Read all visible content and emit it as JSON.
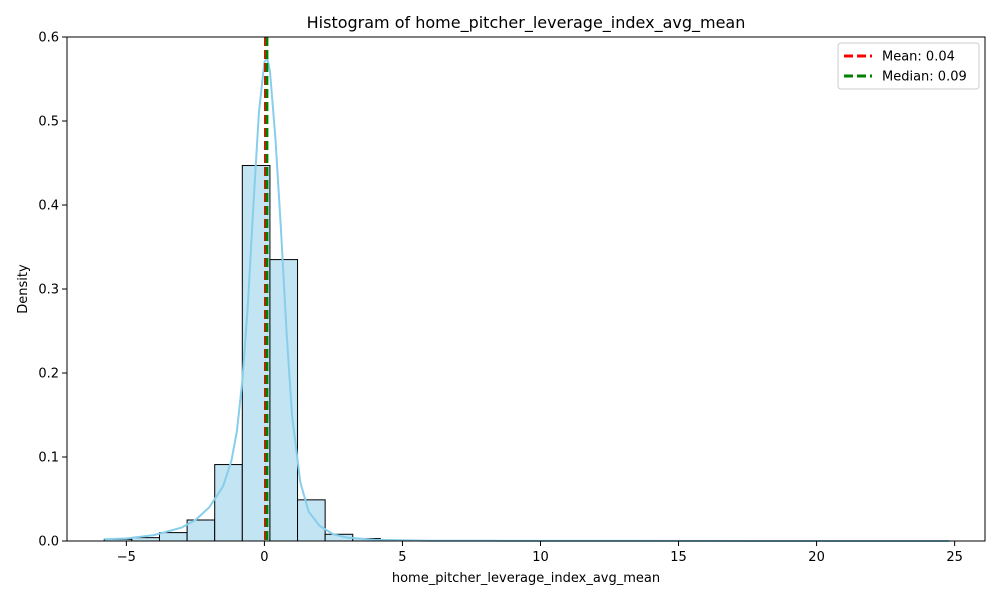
{
  "chart_data": {
    "type": "histogram",
    "title": "Histogram of home_pitcher_leverage_index_avg_mean",
    "xlabel": "home_pitcher_leverage_index_avg_mean",
    "ylabel": "Density",
    "xlim": [
      -7.15,
      26.1
    ],
    "ylim": [
      0,
      0.6
    ],
    "xticks": [
      -5,
      0,
      5,
      10,
      15,
      20,
      25
    ],
    "yticks": [
      0.0,
      0.1,
      0.2,
      0.3,
      0.4,
      0.5,
      0.6
    ],
    "grid": false,
    "legend_position": "top-right",
    "bar_color": "#c3e4f3",
    "bar_edge_color": "#000000",
    "kde_color": "#87ceeb",
    "bins": [
      {
        "x0": -5.8,
        "x1": -4.8,
        "density": 0.002
      },
      {
        "x0": -4.8,
        "x1": -3.8,
        "density": 0.004
      },
      {
        "x0": -3.8,
        "x1": -2.8,
        "density": 0.01
      },
      {
        "x0": -2.8,
        "x1": -1.8,
        "density": 0.025
      },
      {
        "x0": -1.8,
        "x1": -0.8,
        "density": 0.091
      },
      {
        "x0": -0.8,
        "x1": 0.2,
        "density": 0.447
      },
      {
        "x0": 0.2,
        "x1": 1.2,
        "density": 0.335
      },
      {
        "x0": 1.2,
        "x1": 2.2,
        "density": 0.049
      },
      {
        "x0": 2.2,
        "x1": 3.2,
        "density": 0.008
      },
      {
        "x0": 3.2,
        "x1": 4.2,
        "density": 0.003
      },
      {
        "x0": 4.2,
        "x1": 5.2,
        "density": 0.001
      },
      {
        "x0": 5.2,
        "x1": 6.2,
        "density": 0.0005
      },
      {
        "x0": 6.2,
        "x1": 24.8,
        "density": 0.0002
      }
    ],
    "kde": {
      "x": [
        -5.8,
        -5,
        -4,
        -3,
        -2.5,
        -2,
        -1.5,
        -1.2,
        -1,
        -0.8,
        -0.6,
        -0.4,
        -0.2,
        0,
        0.1,
        0.2,
        0.4,
        0.6,
        0.8,
        1,
        1.3,
        1.6,
        2,
        2.5,
        3,
        4,
        5,
        6,
        8,
        12,
        20,
        24.8
      ],
      "y": [
        0.002,
        0.003,
        0.007,
        0.016,
        0.025,
        0.04,
        0.065,
        0.095,
        0.13,
        0.19,
        0.28,
        0.4,
        0.51,
        0.57,
        0.575,
        0.56,
        0.48,
        0.37,
        0.25,
        0.15,
        0.07,
        0.035,
        0.018,
        0.008,
        0.004,
        0.0015,
        0.0008,
        0.0004,
        0.0002,
        0.0001,
        0.0,
        0.0
      ]
    },
    "reference_lines": [
      {
        "label": "Mean: 0.04",
        "x": 0.04,
        "color": "#ff0000"
      },
      {
        "label": "Median: 0.09",
        "x": 0.09,
        "color": "#008000"
      }
    ]
  }
}
